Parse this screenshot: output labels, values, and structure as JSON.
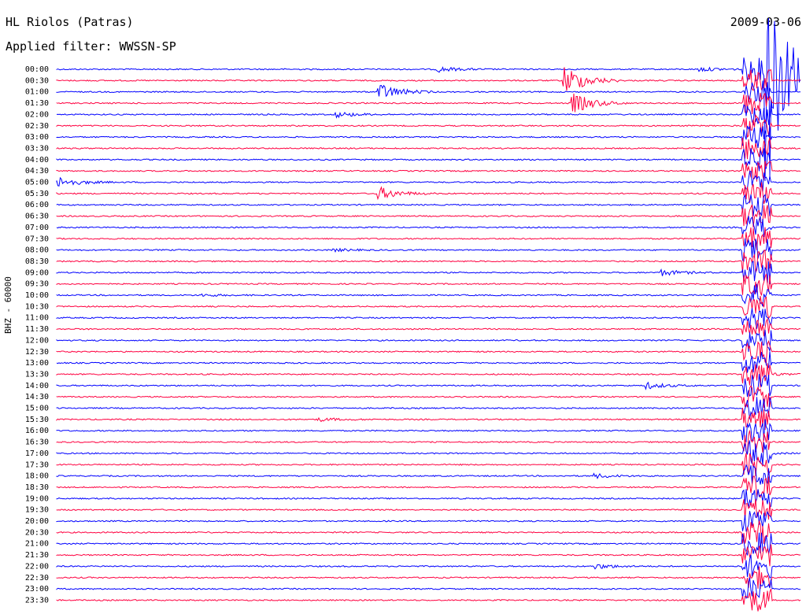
{
  "header": {
    "station": "HL Riolos (Patras)",
    "filter": "Applied filter: WWSSN-SP",
    "date": "2009-03-06"
  },
  "colors": {
    "trace_a": "#0000ff",
    "trace_b": "#ff0040",
    "background": "#ffffff",
    "text": "#000000"
  },
  "chart_data": {
    "type": "line",
    "title": "HL Riolos (Patras)",
    "subtitle": "Applied filter: WWSSN-SP",
    "ylabel": "BHZ - 60000",
    "xlabel": "",
    "row_labels": [
      "00:00",
      "00:30",
      "01:00",
      "01:30",
      "02:00",
      "02:30",
      "03:00",
      "03:30",
      "04:00",
      "04:30",
      "05:00",
      "05:30",
      "06:00",
      "06:30",
      "07:00",
      "07:30",
      "08:00",
      "08:30",
      "09:00",
      "09:30",
      "10:00",
      "10:30",
      "11:00",
      "11:30",
      "12:00",
      "12:30",
      "13:00",
      "13:30",
      "14:00",
      "14:30",
      "15:00",
      "15:30",
      "16:00",
      "16:30",
      "17:00",
      "17:30",
      "18:00",
      "18:30",
      "19:00",
      "19:30",
      "20:00",
      "20:30",
      "21:00",
      "21:30",
      "22:00",
      "22:30",
      "23:00",
      "23:30"
    ],
    "row_duration_minutes": 30,
    "events": [
      {
        "row": 0,
        "t": 0.51,
        "amp": 0.6
      },
      {
        "row": 0,
        "t": 0.86,
        "amp": 0.5
      },
      {
        "row": 1,
        "t": 0.68,
        "amp": 3.5
      },
      {
        "row": 2,
        "t": 0.43,
        "amp": 2.0
      },
      {
        "row": 3,
        "t": 0.69,
        "amp": 2.5
      },
      {
        "row": 4,
        "t": 0.37,
        "amp": 0.7
      },
      {
        "row": 10,
        "t": 0.0,
        "amp": 1.2
      },
      {
        "row": 11,
        "t": 0.43,
        "amp": 1.5
      },
      {
        "row": 16,
        "t": 0.37,
        "amp": 0.3
      },
      {
        "row": 18,
        "t": 0.81,
        "amp": 0.7
      },
      {
        "row": 20,
        "t": 0.19,
        "amp": 0.3
      },
      {
        "row": 27,
        "t": 0.94,
        "amp": 0.6
      },
      {
        "row": 28,
        "t": 0.79,
        "amp": 0.7
      },
      {
        "row": 31,
        "t": 0.35,
        "amp": 0.4
      },
      {
        "row": 34,
        "t": 0.93,
        "amp": 0.4
      },
      {
        "row": 36,
        "t": 0.72,
        "amp": 0.5
      },
      {
        "row": 44,
        "t": 0.72,
        "amp": 0.6
      },
      {
        "row": 0,
        "t": 0.95,
        "amp": 30.0
      }
    ],
    "grid": false,
    "legend": "none"
  }
}
